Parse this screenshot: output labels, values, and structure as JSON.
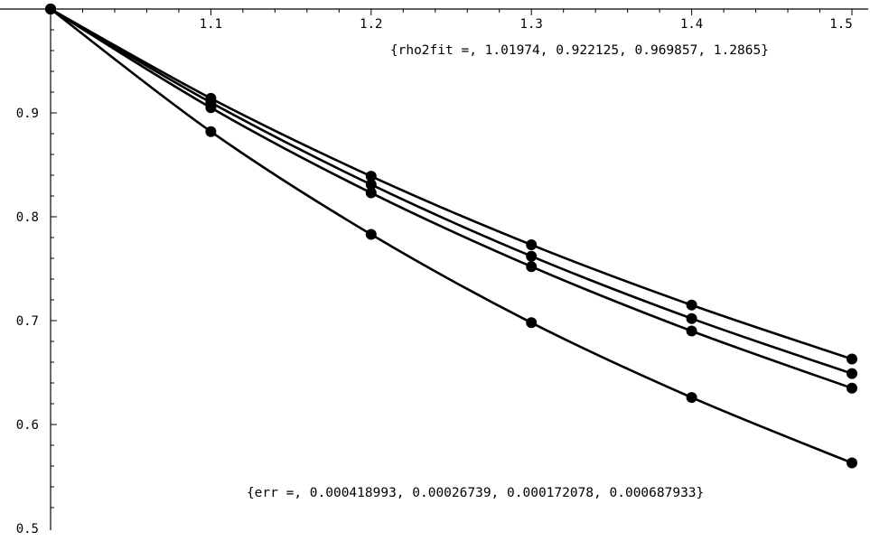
{
  "chart_data": {
    "type": "line",
    "title": "",
    "xlabel": "",
    "ylabel": "",
    "xlim": [
      1.0,
      1.5
    ],
    "ylim": [
      0.5,
      1.0
    ],
    "x": [
      1.0,
      1.1,
      1.2,
      1.3,
      1.4,
      1.5
    ],
    "x_ticks": [
      {
        "value": 1.1,
        "label": "1.1"
      },
      {
        "value": 1.2,
        "label": "1.2"
      },
      {
        "value": 1.3,
        "label": "1.3"
      },
      {
        "value": 1.4,
        "label": "1.4"
      },
      {
        "value": 1.5,
        "label": "1.5"
      }
    ],
    "y_ticks": [
      {
        "value": 0.5,
        "label": "0.5"
      },
      {
        "value": 0.6,
        "label": "0.6"
      },
      {
        "value": 0.7,
        "label": "0.7"
      },
      {
        "value": 0.8,
        "label": "0.8"
      },
      {
        "value": 0.9,
        "label": "0.9"
      }
    ],
    "series": [
      {
        "values": [
          1.0,
          0.914,
          0.839,
          0.773,
          0.715,
          0.663
        ]
      },
      {
        "values": [
          1.0,
          0.91,
          0.831,
          0.762,
          0.702,
          0.649
        ]
      },
      {
        "values": [
          1.0,
          0.905,
          0.823,
          0.752,
          0.69,
          0.635
        ]
      },
      {
        "values": [
          1.0,
          0.882,
          0.783,
          0.698,
          0.626,
          0.563
        ]
      }
    ],
    "annotations": [
      {
        "text": "{rho2fit =, 1.01974, 0.922125, 0.969857, 1.2865}",
        "x": 1.33,
        "y": 0.961
      },
      {
        "text": "{err =, 0.000418993, 0.00026739, 0.000172078, 0.000687933}",
        "x": 1.265,
        "y": 0.535
      }
    ],
    "grid": false,
    "legend": "none",
    "line_color": "#000000",
    "marker": "filled-circle"
  }
}
